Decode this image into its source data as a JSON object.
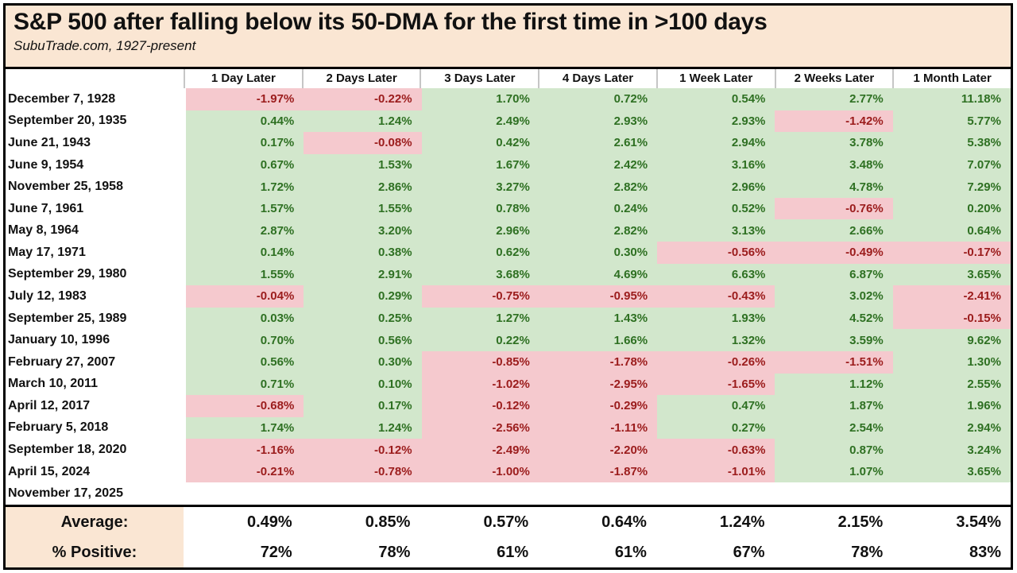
{
  "title": "S&P 500 after falling below its 50-DMA for the first time in >100 days",
  "subtitle": "SubuTrade.com, 1927-present",
  "chart_data": {
    "type": "table",
    "columns": [
      "1 Day Later",
      "2 Days Later",
      "3 Days Later",
      "4 Days Later",
      "1 Week Later",
      "2 Weeks Later",
      "1 Month Later"
    ],
    "rows": [
      {
        "date": "December 7, 1928",
        "values": [
          "-1.97%",
          "-0.22%",
          "1.70%",
          "0.72%",
          "0.54%",
          "2.77%",
          "11.18%"
        ]
      },
      {
        "date": "September 20, 1935",
        "values": [
          "0.44%",
          "1.24%",
          "2.49%",
          "2.93%",
          "2.93%",
          "-1.42%",
          "5.77%"
        ]
      },
      {
        "date": "June 21, 1943",
        "values": [
          "0.17%",
          "-0.08%",
          "0.42%",
          "2.61%",
          "2.94%",
          "3.78%",
          "5.38%"
        ]
      },
      {
        "date": "June 9, 1954",
        "values": [
          "0.67%",
          "1.53%",
          "1.67%",
          "2.42%",
          "3.16%",
          "3.48%",
          "7.07%"
        ]
      },
      {
        "date": "November 25, 1958",
        "values": [
          "1.72%",
          "2.86%",
          "3.27%",
          "2.82%",
          "2.96%",
          "4.78%",
          "7.29%"
        ]
      },
      {
        "date": "June 7, 1961",
        "values": [
          "1.57%",
          "1.55%",
          "0.78%",
          "0.24%",
          "0.52%",
          "-0.76%",
          "0.20%"
        ]
      },
      {
        "date": "May 8, 1964",
        "values": [
          "2.87%",
          "3.20%",
          "2.96%",
          "2.82%",
          "3.13%",
          "2.66%",
          "0.64%"
        ]
      },
      {
        "date": "May 17, 1971",
        "values": [
          "0.14%",
          "0.38%",
          "0.62%",
          "0.30%",
          "-0.56%",
          "-0.49%",
          "-0.17%"
        ]
      },
      {
        "date": "September 29, 1980",
        "values": [
          "1.55%",
          "2.91%",
          "3.68%",
          "4.69%",
          "6.63%",
          "6.87%",
          "3.65%"
        ]
      },
      {
        "date": "July 12, 1983",
        "values": [
          "-0.04%",
          "0.29%",
          "-0.75%",
          "-0.95%",
          "-0.43%",
          "3.02%",
          "-2.41%"
        ]
      },
      {
        "date": "September 25, 1989",
        "values": [
          "0.03%",
          "0.25%",
          "1.27%",
          "1.43%",
          "1.93%",
          "4.52%",
          "-0.15%"
        ]
      },
      {
        "date": "January 10, 1996",
        "values": [
          "0.70%",
          "0.56%",
          "0.22%",
          "1.66%",
          "1.32%",
          "3.59%",
          "9.62%"
        ]
      },
      {
        "date": "February 27, 2007",
        "values": [
          "0.56%",
          "0.30%",
          "-0.85%",
          "-1.78%",
          "-0.26%",
          "-1.51%",
          "1.30%"
        ]
      },
      {
        "date": "March 10, 2011",
        "values": [
          "0.71%",
          "0.10%",
          "-1.02%",
          "-2.95%",
          "-1.65%",
          "1.12%",
          "2.55%"
        ]
      },
      {
        "date": "April 12, 2017",
        "values": [
          "-0.68%",
          "0.17%",
          "-0.12%",
          "-0.29%",
          "0.47%",
          "1.87%",
          "1.96%"
        ]
      },
      {
        "date": "February 5, 2018",
        "values": [
          "1.74%",
          "1.24%",
          "-2.56%",
          "-1.11%",
          "0.27%",
          "2.54%",
          "2.94%"
        ]
      },
      {
        "date": "September 18, 2020",
        "values": [
          "-1.16%",
          "-0.12%",
          "-2.49%",
          "-2.20%",
          "-0.63%",
          "0.87%",
          "3.24%"
        ]
      },
      {
        "date": "April 15, 2024",
        "values": [
          "-0.21%",
          "-0.78%",
          "-1.00%",
          "-1.87%",
          "-1.01%",
          "1.07%",
          "3.65%"
        ]
      },
      {
        "date": "November 17, 2025",
        "values": [
          "",
          "",
          "",
          "",
          "",
          "",
          ""
        ]
      }
    ],
    "summary": {
      "average_label": "Average:",
      "average": [
        "0.49%",
        "0.85%",
        "0.57%",
        "0.64%",
        "1.24%",
        "2.15%",
        "3.54%"
      ],
      "positive_label": "% Positive:",
      "positive": [
        "72%",
        "78%",
        "61%",
        "61%",
        "67%",
        "78%",
        "83%"
      ]
    }
  },
  "colors": {
    "positive_bg": "#d2e7cc",
    "negative_bg": "#f5c9ce",
    "positive_text": "#2e7022",
    "negative_text": "#9b1c1c",
    "header_bg": "#fae6d3",
    "border": "#000000"
  }
}
